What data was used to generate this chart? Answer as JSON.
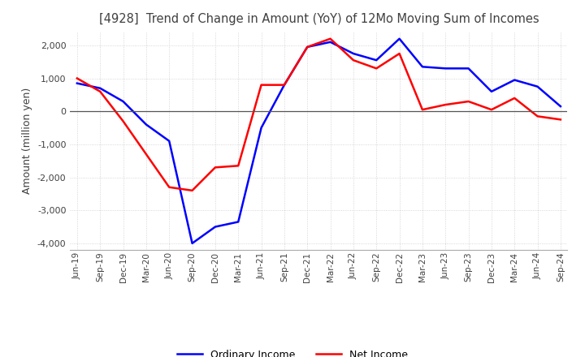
{
  "title": "[4928]  Trend of Change in Amount (YoY) of 12Mo Moving Sum of Incomes",
  "ylabel": "Amount (million yen)",
  "ylim": [
    -4200,
    2400
  ],
  "yticks": [
    -4000,
    -3000,
    -2000,
    -1000,
    0,
    1000,
    2000
  ],
  "legend_labels": [
    "Ordinary Income",
    "Net Income"
  ],
  "line_colors": [
    "#0000ff",
    "#ff0000"
  ],
  "x_labels": [
    "Jun-19",
    "Sep-19",
    "Dec-19",
    "Mar-20",
    "Jun-20",
    "Sep-20",
    "Dec-20",
    "Mar-21",
    "Jun-21",
    "Sep-21",
    "Dec-21",
    "Mar-22",
    "Jun-22",
    "Sep-22",
    "Dec-22",
    "Mar-23",
    "Jun-23",
    "Sep-23",
    "Dec-23",
    "Mar-24",
    "Jun-24",
    "Sep-24"
  ],
  "ordinary_income": [
    850,
    700,
    300,
    -400,
    -900,
    -4000,
    -3500,
    -3350,
    -500,
    800,
    1950,
    2100,
    1750,
    1550,
    2200,
    1350,
    1300,
    1300,
    600,
    950,
    750,
    150
  ],
  "net_income": [
    1000,
    600,
    -300,
    -1300,
    -2300,
    -2400,
    -1700,
    -1650,
    800,
    800,
    1950,
    2200,
    1550,
    1300,
    1750,
    50,
    200,
    300,
    50,
    400,
    -150,
    -250
  ],
  "background_color": "#ffffff",
  "grid_color": "#cccccc",
  "title_color": "#404040"
}
